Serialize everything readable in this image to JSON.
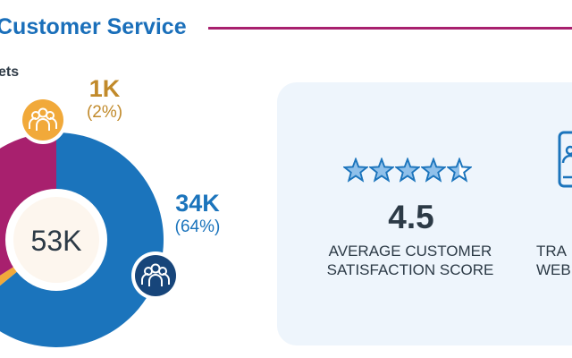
{
  "header": {
    "title": "Customer Service",
    "subhead": "ets"
  },
  "chart_data": {
    "type": "pie",
    "title": "",
    "center_label": "53K",
    "series": [
      {
        "value": 34,
        "value_label": "34K",
        "percent_label": "(64%)",
        "color": "#1b74bc"
      },
      {
        "value": 1,
        "value_label": "1K",
        "percent_label": "(2%)",
        "color": "#f1a93a"
      },
      {
        "value": 18,
        "color": "#a8206e"
      }
    ],
    "icons": [
      "people-icon",
      "people-icon"
    ]
  },
  "card": {
    "rating_stars": 4.5,
    "star_icon": "star-icon",
    "score": "4.5",
    "score_label_line1": "AVERAGE CUSTOMER",
    "score_label_line2": "SATISFACTION SCORE",
    "side_label_line1": "TRA",
    "side_label_line2": "WEB",
    "side_icon": "tablet-icon",
    "colors": {
      "background": "#eef5fc",
      "star": "#1b74bc",
      "text": "#2c3a46"
    }
  }
}
